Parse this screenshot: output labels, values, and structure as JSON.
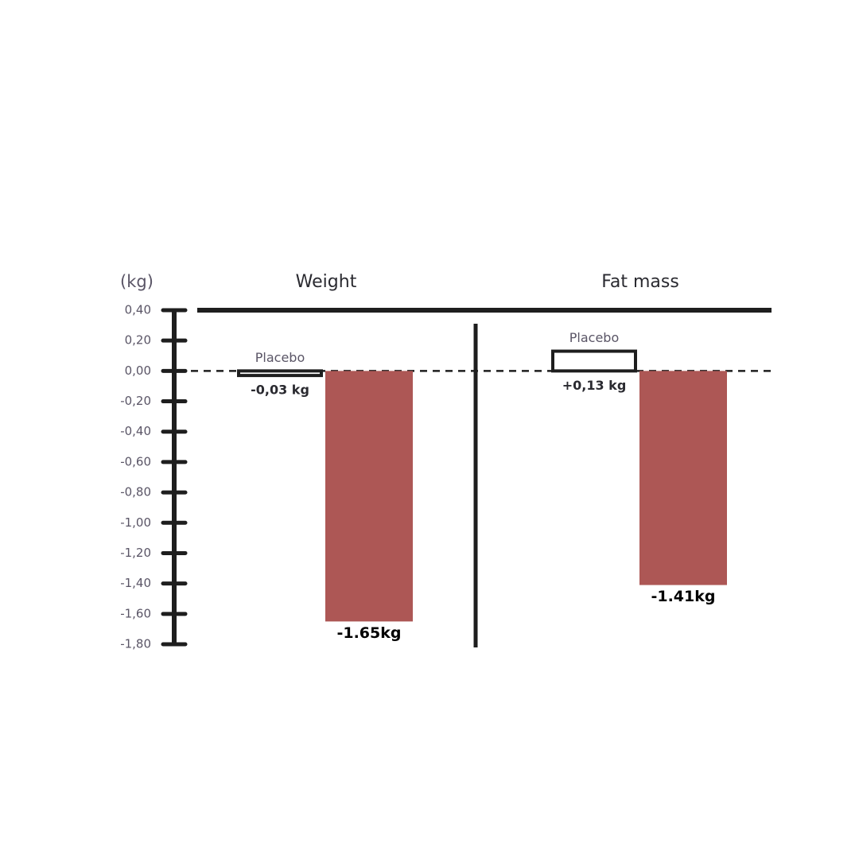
{
  "chart_data": {
    "type": "bar",
    "y_label": "(kg)",
    "categories": [
      "Weight",
      "Fat mass"
    ],
    "series": [
      {
        "name": "Placebo",
        "color": "#ffffff",
        "values": [
          -0.03,
          0.13
        ],
        "value_labels": [
          "-0,03 kg",
          "+0,13 kg"
        ]
      },
      {
        "color": "#ad5755",
        "values": [
          -1.65,
          -1.41
        ],
        "value_labels": [
          "-1.65kg",
          "-1.41kg"
        ]
      }
    ],
    "ylim": [
      -1.8,
      0.4
    ],
    "yticks": [
      {
        "value": 0.4,
        "label": "0,40"
      },
      {
        "value": 0.2,
        "label": "0,20"
      },
      {
        "value": 0,
        "label": "0,00"
      },
      {
        "value": -0.2,
        "label": "-0,20"
      },
      {
        "value": -0.4,
        "label": "-0,40"
      },
      {
        "value": -0.6,
        "label": "-0,60"
      },
      {
        "value": -0.8,
        "label": "-0,80"
      },
      {
        "value": -1.0,
        "label": "-1,00"
      },
      {
        "value": -1.2,
        "label": "-1,20"
      },
      {
        "value": -1.4,
        "label": "-1,40"
      },
      {
        "value": -1.6,
        "label": "-1,60"
      },
      {
        "value": -1.8,
        "label": "-1,80"
      }
    ]
  }
}
